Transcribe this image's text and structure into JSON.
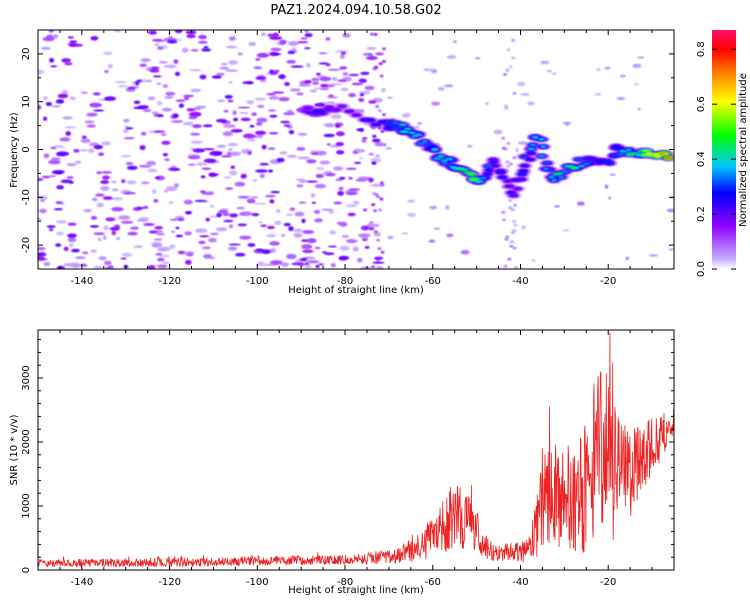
{
  "figure": {
    "title": "PAZ1.2024.094.10.58.G02"
  },
  "chart_data": [
    {
      "type": "heatmap",
      "xlabel": "Height of straight line (km)",
      "ylabel": "Frequency (Hz)",
      "xlim": [
        -150,
        -5
      ],
      "ylim": [
        -25,
        25
      ],
      "xticks": [
        -140,
        -120,
        -100,
        -80,
        -60,
        -40,
        -20
      ],
      "yticks": [
        -20,
        -10,
        0,
        10,
        20
      ],
      "colorbar": {
        "label": "Normalized spectral amplitude",
        "ticks": [
          0.0,
          0.2,
          0.4,
          0.6,
          0.8
        ],
        "tick_labels": [
          "0.0",
          "0.2",
          "0.4",
          "0.6",
          "0.8"
        ],
        "range": [
          0.0,
          0.87
        ],
        "colormap": "rainbow-white",
        "colors": [
          "#ffffff",
          "#c7b1ff",
          "#9000ff",
          "#0000ff",
          "#00c8ff",
          "#00ff00",
          "#ffff00",
          "#ff8000",
          "#ff0000",
          "#ff1070"
        ]
      },
      "ridge": [
        {
          "x": -89,
          "y": 9,
          "amp": 0.22
        },
        {
          "x": -86,
          "y": 7.5,
          "amp": 0.26
        },
        {
          "x": -82,
          "y": 9,
          "amp": 0.22
        },
        {
          "x": -71,
          "y": 5,
          "amp": 0.3
        },
        {
          "x": -68,
          "y": 5,
          "amp": 0.42
        },
        {
          "x": -65,
          "y": 4,
          "amp": 0.42
        },
        {
          "x": -61,
          "y": 1,
          "amp": 0.36
        },
        {
          "x": -58,
          "y": -2,
          "amp": 0.45
        },
        {
          "x": -55,
          "y": -3,
          "amp": 0.38
        },
        {
          "x": -52,
          "y": -5.5,
          "amp": 0.62
        },
        {
          "x": -49,
          "y": -7,
          "amp": 0.42
        },
        {
          "x": -46,
          "y": -2,
          "amp": 0.3
        },
        {
          "x": -42,
          "y": -9.5,
          "amp": 0.26
        },
        {
          "x": -39,
          "y": -3,
          "amp": 0.32
        },
        {
          "x": -36,
          "y": 3,
          "amp": 0.42
        },
        {
          "x": -33,
          "y": -6,
          "amp": 0.42
        },
        {
          "x": -29,
          "y": -4,
          "amp": 0.5
        },
        {
          "x": -25,
          "y": -2,
          "amp": 0.35
        },
        {
          "x": -21,
          "y": -3,
          "amp": 0.28
        },
        {
          "x": -18,
          "y": 0,
          "amp": 0.35
        },
        {
          "x": -14,
          "y": -1,
          "amp": 0.52
        },
        {
          "x": -10,
          "y": -1,
          "amp": 0.62
        },
        {
          "x": -6,
          "y": -1,
          "amp": 0.78
        }
      ]
    },
    {
      "type": "line",
      "xlabel": "Height of straight line (km)",
      "ylabel": "SNR (10 * v/v)",
      "xlim": [
        -150,
        -5
      ],
      "ylim": [
        0,
        3750
      ],
      "xticks": [
        -140,
        -120,
        -100,
        -80,
        -60,
        -40,
        -20
      ],
      "yticks": [
        0,
        1000,
        2000,
        3000
      ],
      "series": [
        {
          "color": "#ee2222",
          "envelope": [
            {
              "x": -150,
              "mean": 110,
              "spread": 60
            },
            {
              "x": -120,
              "mean": 120,
              "spread": 70
            },
            {
              "x": -100,
              "mean": 140,
              "spread": 70
            },
            {
              "x": -80,
              "mean": 160,
              "spread": 80
            },
            {
              "x": -68,
              "mean": 220,
              "spread": 120
            },
            {
              "x": -62,
              "mean": 400,
              "spread": 250
            },
            {
              "x": -58,
              "mean": 650,
              "spread": 400
            },
            {
              "x": -54,
              "mean": 900,
              "spread": 550
            },
            {
              "x": -50,
              "mean": 600,
              "spread": 350
            },
            {
              "x": -47,
              "mean": 300,
              "spread": 150
            },
            {
              "x": -40,
              "mean": 260,
              "spread": 150
            },
            {
              "x": -37,
              "mean": 400,
              "spread": 250
            },
            {
              "x": -35,
              "mean": 1200,
              "spread": 900
            },
            {
              "x": -30,
              "mean": 1100,
              "spread": 800
            },
            {
              "x": -26,
              "mean": 1200,
              "spread": 950
            },
            {
              "x": -22,
              "mean": 1900,
              "spread": 1600
            },
            {
              "x": -20,
              "mean": 1700,
              "spread": 1400
            },
            {
              "x": -17,
              "mean": 1400,
              "spread": 900
            },
            {
              "x": -13,
              "mean": 1700,
              "spread": 600
            },
            {
              "x": -10,
              "mean": 2000,
              "spread": 500
            },
            {
              "x": -8,
              "mean": 2050,
              "spread": 350
            },
            {
              "x": -5,
              "mean": 2400,
              "spread": 250
            }
          ]
        }
      ]
    }
  ]
}
